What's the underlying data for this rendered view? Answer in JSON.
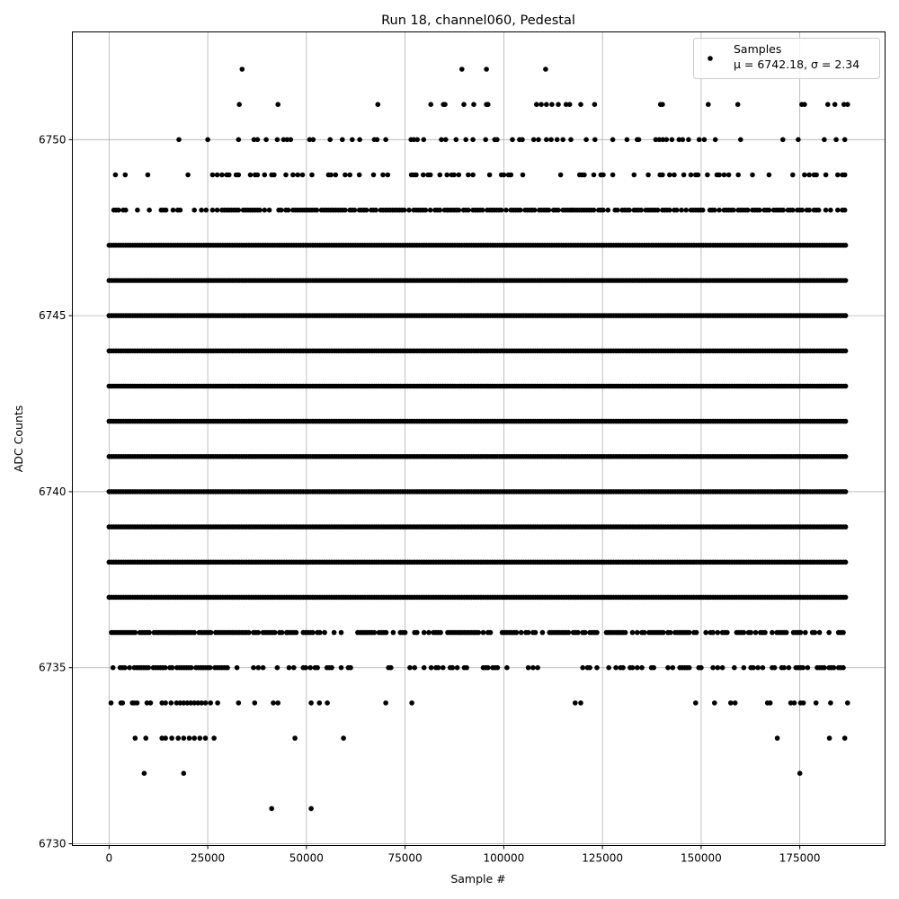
{
  "chart_data": {
    "type": "scatter",
    "title": "Run 18, channel060, Pedestal",
    "xlabel": "Sample #",
    "ylabel": "ADC Counts",
    "xlim": [
      -9300,
      196600
    ],
    "ylim": [
      6729.95,
      6753.06
    ],
    "xticks": [
      0,
      25000,
      50000,
      75000,
      100000,
      125000,
      150000,
      175000
    ],
    "yticks": [
      6730,
      6735,
      6740,
      6745,
      6750
    ],
    "grid": true,
    "legend": {
      "placement": "top-right",
      "entries": [
        "Samples",
        "μ = 6742.18, σ = 2.34"
      ]
    },
    "marker_color": "#000000",
    "x_max_sample": 187000,
    "levels": [
      {
        "value": 6731,
        "samples": [
          41200,
          51200
        ]
      },
      {
        "value": 6732,
        "samples": [
          8900,
          18900,
          175000
        ]
      },
      {
        "value": 6733,
        "samples": [
          6600,
          9300,
          13400,
          14300,
          15900,
          17500,
          18900,
          20300,
          21600,
          23000,
          24400,
          26600,
          47100,
          59400,
          169300,
          182500,
          186400
        ]
      },
      {
        "value": 6734,
        "samples": [
          500,
          3000,
          3400,
          5900,
          6400,
          7100,
          9600,
          10500,
          13400,
          14300,
          15700,
          17100,
          18000,
          18900,
          19800,
          20700,
          21600,
          22500,
          23400,
          24400,
          25700,
          27500,
          32800,
          36900,
          41600,
          42800,
          51200,
          53300,
          55300,
          70100,
          76700,
          118100,
          119500,
          148600,
          153400,
          157500,
          158600,
          166800,
          167500,
          172700,
          173600,
          175200,
          175900,
          179100,
          182800,
          187100
        ]
      },
      {
        "value": 6735,
        "segments": [
          [
            1000,
            30000,
            0.8
          ],
          [
            30000,
            110000,
            0.35
          ],
          [
            110000,
            120000,
            0.05
          ],
          [
            120000,
            187000,
            0.4
          ]
        ]
      },
      {
        "value": 6736,
        "segments": [
          [
            0,
            45000,
            0.9
          ],
          [
            45000,
            187000,
            0.65
          ]
        ]
      },
      {
        "value": 6737,
        "segments": [
          [
            0,
            187000,
            1
          ]
        ]
      },
      {
        "value": 6738,
        "segments": [
          [
            0,
            187000,
            1
          ]
        ]
      },
      {
        "value": 6739,
        "segments": [
          [
            0,
            187000,
            1
          ]
        ]
      },
      {
        "value": 6740,
        "segments": [
          [
            0,
            187000,
            1
          ]
        ]
      },
      {
        "value": 6741,
        "segments": [
          [
            0,
            187000,
            1
          ]
        ]
      },
      {
        "value": 6742,
        "segments": [
          [
            0,
            187000,
            1
          ]
        ]
      },
      {
        "value": 6743,
        "segments": [
          [
            0,
            187000,
            1
          ]
        ]
      },
      {
        "value": 6744,
        "segments": [
          [
            0,
            187000,
            1
          ]
        ]
      },
      {
        "value": 6745,
        "segments": [
          [
            0,
            187000,
            1
          ]
        ]
      },
      {
        "value": 6746,
        "segments": [
          [
            0,
            187000,
            1
          ]
        ]
      },
      {
        "value": 6747,
        "segments": [
          [
            0,
            187000,
            1
          ]
        ]
      },
      {
        "value": 6748,
        "segments": [
          [
            0,
            25000,
            0.4
          ],
          [
            25000,
            187000,
            0.8
          ]
        ]
      },
      {
        "value": 6749,
        "samples": [
          1600,
          4100,
          9800,
          20000
        ],
        "segments": [
          [
            25000,
            187000,
            0.35
          ]
        ]
      },
      {
        "value": 6750,
        "samples": [
          17700,
          25000,
          32800,
          36700,
          37600,
          39800,
          42600,
          44200,
          45100,
          46000,
          50800,
          51700,
          56000,
          59100,
          61600,
          63500,
          67200,
          67900,
          70100,
          76500,
          77200,
          78100,
          79700,
          84200,
          85300,
          87900,
          90400,
          92200,
          95400,
          97700,
          98300,
          102200,
          104000,
          104700,
          107600,
          108800,
          110800,
          112000,
          113500,
          115000,
          117000,
          120900,
          123100,
          127600,
          131200,
          133800,
          134200,
          138500,
          139400,
          140300,
          141200,
          142600,
          144400,
          145300,
          146800,
          149500,
          150800,
          153600,
          160000,
          170700,
          174600,
          181200,
          184200,
          186400
        ]
      },
      {
        "value": 6751,
        "samples": [
          33000,
          42800,
          68100,
          81500,
          84700,
          85100,
          89900,
          92400,
          95600,
          96000,
          108300,
          109500,
          110800,
          112200,
          113800,
          115800,
          116700,
          119500,
          123000,
          139700,
          140200,
          151800,
          159300,
          175500,
          176200,
          182100,
          183900,
          186200,
          187100
        ]
      },
      {
        "value": 6752,
        "samples": [
          33700,
          89400,
          95600,
          110600
        ]
      }
    ]
  }
}
